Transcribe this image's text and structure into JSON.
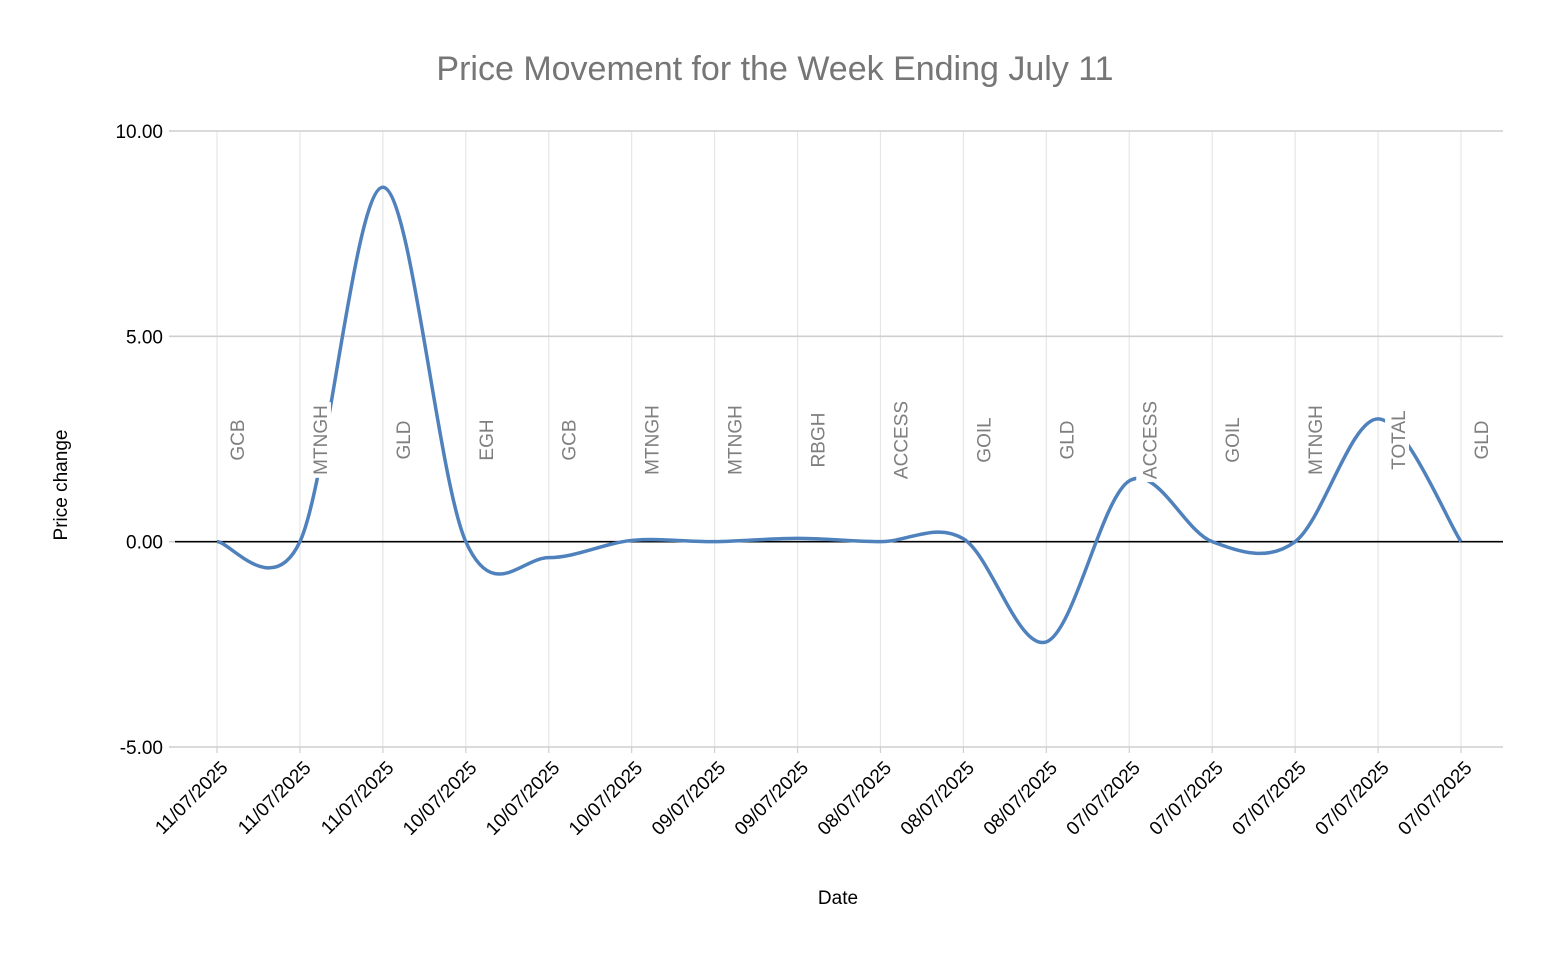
{
  "chart_data": {
    "type": "line",
    "title": "Price Movement for the Week Ending July 11",
    "xlabel": "Date",
    "ylabel": "Price change",
    "ylim": [
      -5,
      10
    ],
    "y_ticks": [
      "10.00",
      "5.00",
      "0.00",
      "-5.00"
    ],
    "smooth": true,
    "grid": true,
    "legend": "none",
    "colors": {
      "line": "#4f81bd",
      "grid": "#d9d9d9",
      "zero_line": "#000000",
      "label": "#7f7f7f"
    },
    "categories": [
      "11/07/2025",
      "11/07/2025",
      "11/07/2025",
      "10/07/2025",
      "10/07/2025",
      "10/07/2025",
      "09/07/2025",
      "09/07/2025",
      "08/07/2025",
      "08/07/2025",
      "08/07/2025",
      "07/07/2025",
      "07/07/2025",
      "07/07/2025",
      "07/07/2025",
      "07/07/2025"
    ],
    "point_labels": [
      "GCB",
      "MTNGH",
      "GLD",
      "EGH",
      "GCB",
      "MTNGH",
      "MTNGH",
      "RBGH",
      "ACCESS",
      "GOIL",
      "GLD",
      "ACCESS",
      "GOIL",
      "MTNGH",
      "TOTAL",
      "GLD"
    ],
    "series": [
      {
        "values": [
          0.0,
          0.0,
          8.63,
          0.0,
          -0.39,
          0.03,
          0.0,
          0.08,
          0.0,
          0.07,
          -2.44,
          1.48,
          0.0,
          0.0,
          2.99,
          0.0
        ]
      }
    ]
  }
}
